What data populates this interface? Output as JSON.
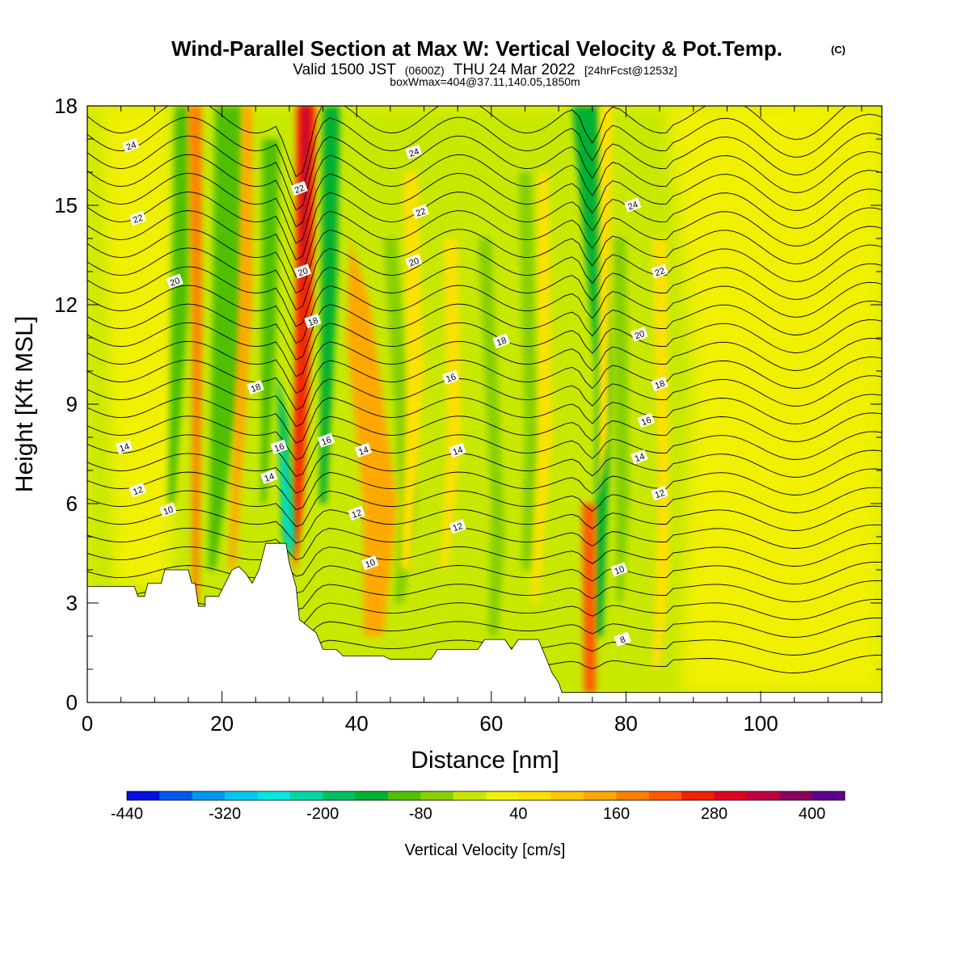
{
  "titles": {
    "main": "Wind-Parallel Section at Max W: Vertical Velocity & Pot.Temp.",
    "copyright": "(C)",
    "valid_prefix": "Valid 1500 JST",
    "valid_utc": "(0600Z)",
    "valid_date": "THU 24 Mar 2022",
    "forecast": "[24hrFcst@1253z]",
    "box": "boxWmax=404@37.11,140.05,1850m"
  },
  "chart_data": {
    "type": "heatmap",
    "title": "Wind-Parallel Section at Max W: Vertical Velocity & Pot.Temp.",
    "xlabel": "Distance [nm]",
    "ylabel": "Height [Kft MSL]",
    "xlim": [
      0,
      118
    ],
    "ylim": [
      0,
      18
    ],
    "x_ticks": [
      0,
      20,
      40,
      60,
      80,
      100
    ],
    "y_ticks": [
      0,
      3,
      6,
      9,
      12,
      15,
      18
    ],
    "colorbar": {
      "label": "Vertical Velocity [cm/s]",
      "levels": [
        -440,
        -400,
        -360,
        -320,
        -280,
        -240,
        -200,
        -160,
        -120,
        -80,
        -40,
        0,
        40,
        80,
        120,
        160,
        200,
        240,
        280,
        320,
        360,
        400,
        440
      ],
      "tick_labels": [
        -440,
        -320,
        -200,
        -80,
        40,
        160,
        280,
        400
      ],
      "colors": [
        "#0010e0",
        "#0058f0",
        "#0098f0",
        "#00c8f0",
        "#00e8e0",
        "#00d8a0",
        "#00c060",
        "#00b030",
        "#50c000",
        "#88d000",
        "#c8e800",
        "#f0f000",
        "#ffe000",
        "#ffc800",
        "#ffa800",
        "#ff8000",
        "#ff5800",
        "#f02000",
        "#e00020",
        "#c00040",
        "#900060",
        "#600090"
      ]
    },
    "background_level": "0 to 40 cm/s",
    "terrain_kft": [
      [
        0,
        3.5
      ],
      [
        7,
        3.5
      ],
      [
        7.5,
        3.2
      ],
      [
        8.5,
        3.2
      ],
      [
        9,
        3.6
      ],
      [
        11,
        3.6
      ],
      [
        11.5,
        4.0
      ],
      [
        15,
        4.0
      ],
      [
        15.5,
        3.6
      ],
      [
        16,
        3.6
      ],
      [
        16.5,
        2.9
      ],
      [
        17.5,
        2.9
      ],
      [
        17.5,
        3.2
      ],
      [
        19.5,
        3.2
      ],
      [
        20.5,
        3.6
      ],
      [
        21.5,
        4.0
      ],
      [
        22.5,
        4.1
      ],
      [
        23.5,
        3.9
      ],
      [
        24.5,
        3.6
      ],
      [
        25.5,
        4.0
      ],
      [
        26.5,
        4.8
      ],
      [
        29.5,
        4.8
      ],
      [
        30,
        4.2
      ],
      [
        31,
        3.5
      ],
      [
        31.5,
        2.5
      ],
      [
        34,
        2.1
      ],
      [
        35,
        1.6
      ],
      [
        37,
        1.6
      ],
      [
        38,
        1.4
      ],
      [
        44,
        1.4
      ],
      [
        45,
        1.3
      ],
      [
        51,
        1.3
      ],
      [
        52,
        1.6
      ],
      [
        58,
        1.6
      ],
      [
        59,
        1.9
      ],
      [
        62,
        1.9
      ],
      [
        63,
        1.6
      ],
      [
        64,
        1.9
      ],
      [
        67,
        1.9
      ],
      [
        68,
        1.4
      ],
      [
        69,
        0.9
      ],
      [
        70,
        0.6
      ],
      [
        70.5,
        0.3
      ],
      [
        118,
        0.3
      ]
    ],
    "isentropes_C": [
      8,
      10,
      12,
      14,
      16,
      18,
      20,
      22,
      24
    ],
    "contour_labels": [
      {
        "text": "24",
        "x": 6.5,
        "y": 16.8
      },
      {
        "text": "22",
        "x": 7.5,
        "y": 14.6
      },
      {
        "text": "20",
        "x": 13,
        "y": 12.7
      },
      {
        "text": "14",
        "x": 5.5,
        "y": 7.7
      },
      {
        "text": "12",
        "x": 7.5,
        "y": 6.4
      },
      {
        "text": "10",
        "x": 12,
        "y": 5.8
      },
      {
        "text": "18",
        "x": 25,
        "y": 9.5
      },
      {
        "text": "14",
        "x": 27,
        "y": 6.8
      },
      {
        "text": "16",
        "x": 28.5,
        "y": 7.7
      },
      {
        "text": "22",
        "x": 31.5,
        "y": 15.5
      },
      {
        "text": "20",
        "x": 32,
        "y": 13.0
      },
      {
        "text": "18",
        "x": 33.5,
        "y": 11.5
      },
      {
        "text": "16",
        "x": 35.5,
        "y": 7.9
      },
      {
        "text": "14",
        "x": 41,
        "y": 7.6
      },
      {
        "text": "12",
        "x": 40,
        "y": 5.7
      },
      {
        "text": "10",
        "x": 42,
        "y": 4.2
      },
      {
        "text": "24",
        "x": 48.5,
        "y": 16.6
      },
      {
        "text": "22",
        "x": 49.5,
        "y": 14.8
      },
      {
        "text": "20",
        "x": 48.5,
        "y": 13.3
      },
      {
        "text": "16",
        "x": 54,
        "y": 9.8
      },
      {
        "text": "14",
        "x": 55,
        "y": 7.6
      },
      {
        "text": "12",
        "x": 55,
        "y": 5.3
      },
      {
        "text": "18",
        "x": 61.5,
        "y": 10.9
      },
      {
        "text": "24",
        "x": 81,
        "y": 15.0
      },
      {
        "text": "22",
        "x": 85,
        "y": 13.0
      },
      {
        "text": "20",
        "x": 82,
        "y": 11.1
      },
      {
        "text": "18",
        "x": 85,
        "y": 9.6
      },
      {
        "text": "16",
        "x": 83,
        "y": 8.5
      },
      {
        "text": "14",
        "x": 82,
        "y": 7.4
      },
      {
        "text": "12",
        "x": 85,
        "y": 6.3
      },
      {
        "text": "10",
        "x": 79,
        "y": 4.0
      },
      {
        "text": "8",
        "x": 79.5,
        "y": 1.9
      }
    ],
    "features": [
      {
        "kind": "updraft",
        "x_base": 31,
        "x_top": 33,
        "peak_cms": 404
      },
      {
        "kind": "downdraft",
        "x": 29.5,
        "y_range": [
          4.5,
          9
        ],
        "min_cms": -300
      },
      {
        "kind": "updraft-band",
        "x_base": 16,
        "x_top": 17,
        "max_cms": 160
      },
      {
        "kind": "updraft-band",
        "x_base": 40,
        "x_top": 46,
        "max_cms": 160
      },
      {
        "kind": "updraft",
        "x_base": 74,
        "x_top": 75,
        "max_cms": 240
      }
    ]
  }
}
